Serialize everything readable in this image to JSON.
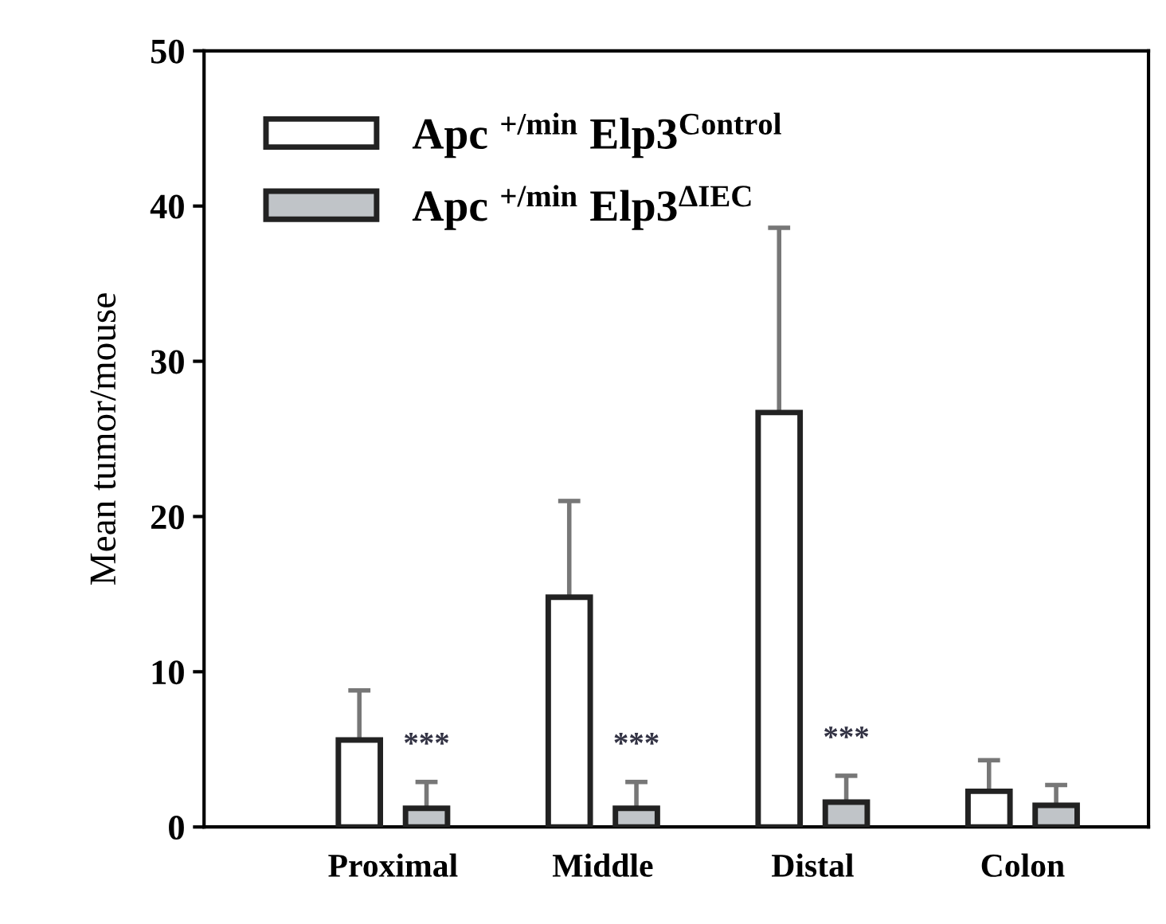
{
  "chart_data": {
    "type": "bar",
    "ylabel": "Mean tumor/mouse",
    "categories": [
      "Proximal",
      "Middle",
      "Distal",
      "Colon"
    ],
    "series": [
      {
        "name": "Apc $^{+/min}$ Elp3$^{Control}$",
        "color": "#ffffff",
        "values": [
          5.6,
          14.8,
          26.7,
          2.3
        ],
        "errors": [
          [
            5.6,
            8.8
          ],
          [
            14.8,
            21.0
          ],
          [
            26.7,
            38.6
          ],
          [
            2.3,
            4.3
          ]
        ]
      },
      {
        "name": "Apc $^{+/min}$ Elp3$^{ΔIEC}$",
        "color": "#c0c4c8",
        "values": [
          1.2,
          1.2,
          1.6,
          1.4
        ],
        "errors": [
          [
            1.2,
            2.9
          ],
          [
            1.2,
            2.9
          ],
          [
            1.6,
            3.3
          ],
          [
            1.4,
            2.7
          ]
        ]
      }
    ],
    "ylim": [
      0,
      50
    ],
    "yticks": [
      0,
      10,
      20,
      30,
      40,
      50
    ],
    "grid": false,
    "legend": "top left",
    "annotations": [
      "***",
      "***",
      "***"
    ]
  }
}
